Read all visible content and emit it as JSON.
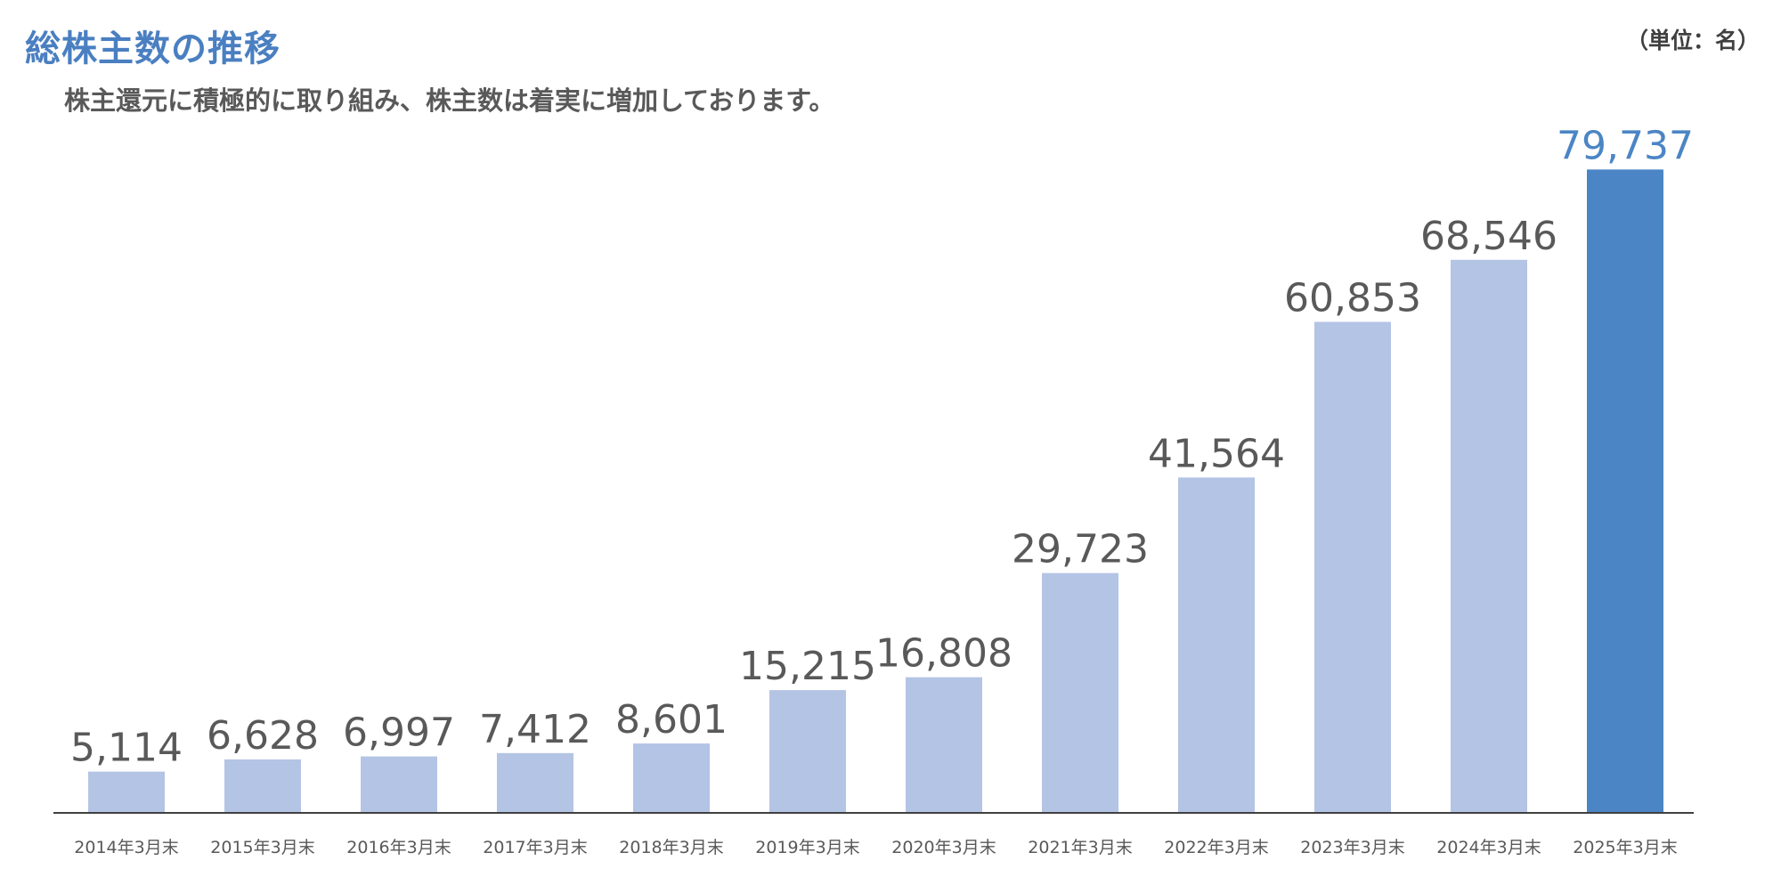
{
  "header": {
    "title": "総株主数の推移",
    "subtitle": "株主還元に積極的に取り組み、株主数は着実に増加しております。",
    "unit": "（単位：名）"
  },
  "colors": {
    "bar": "#b4c4e5",
    "highlight_bar": "#4b85c5",
    "value_label": "#595959",
    "highlight_label": "#4b85c5",
    "axis": "#404040",
    "tick_label": "#595959"
  },
  "chart_data": {
    "type": "bar",
    "title": "総株主数の推移",
    "categories": [
      "2014年3月末",
      "2015年3月末",
      "2016年3月末",
      "2017年3月末",
      "2018年3月末",
      "2019年3月末",
      "2020年3月末",
      "2021年3月末",
      "2022年3月末",
      "2023年3月末",
      "2024年3月末",
      "2025年3月末"
    ],
    "values": [
      5114,
      6628,
      6997,
      7412,
      8601,
      15215,
      16808,
      29723,
      41564,
      60853,
      68546,
      79737
    ],
    "value_labels": [
      "5,114",
      "6,628",
      "6,997",
      "7,412",
      "8,601",
      "15,215",
      "16,808",
      "29,723",
      "41,564",
      "60,853",
      "68,546",
      "79,737"
    ],
    "highlight_index": 11,
    "ylim": [
      0,
      80000
    ],
    "grid": false,
    "legend": "none"
  }
}
